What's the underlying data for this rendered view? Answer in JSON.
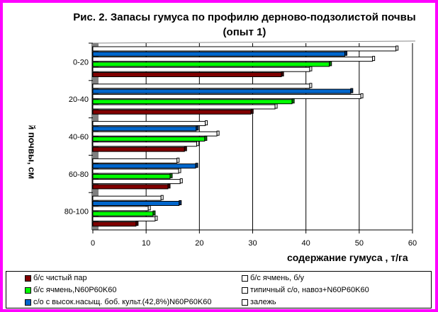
{
  "chart_data": {
    "type": "bar",
    "orientation": "horizontal",
    "title": [
      "Рис. 2. Запасы гумуса по профилю дерново-подзолистой почвы",
      "(опыт 1)"
    ],
    "xlabel": "содержание гумуса , т/га",
    "ylabel": "слой почвы, см",
    "xlim": [
      0,
      60
    ],
    "xticks": [
      "0",
      "10",
      "20",
      "30",
      "40",
      "50",
      "60"
    ],
    "categories": [
      "0-20",
      "20-40",
      "40-60",
      "60-80",
      "80-100"
    ],
    "series": [
      {
        "name": "б/с чистый пар",
        "color": "#800000",
        "values": [
          35.4,
          29.7,
          17.2,
          14.1,
          8.1
        ]
      },
      {
        "name": "б/с ячмень, б/у",
        "color": "#ffffff",
        "values": [
          40.7,
          34.2,
          19.5,
          16.4,
          11.7
        ]
      },
      {
        "name": "б/с ячмень,N60P60K60",
        "color": "#00ff00",
        "values": [
          44.4,
          37.4,
          21.0,
          14.5,
          11.3
        ]
      },
      {
        "name": "типичный с/о, навоз+N60P60K60",
        "color": "#ffffff",
        "values": [
          52.5,
          50.3,
          23.3,
          16.1,
          10.4
        ]
      },
      {
        "name": "с/о с высок.насыщ. боб. культ.(42,8%)N60P60K60",
        "color": "#0066cc",
        "values": [
          47.3,
          48.4,
          19.4,
          19.3,
          16.2
        ]
      },
      {
        "name": "залежь",
        "color": "#ffffff",
        "values": [
          56.9,
          40.7,
          21.1,
          15.8,
          12.8
        ]
      }
    ],
    "grid": true,
    "legend": "bottom"
  }
}
